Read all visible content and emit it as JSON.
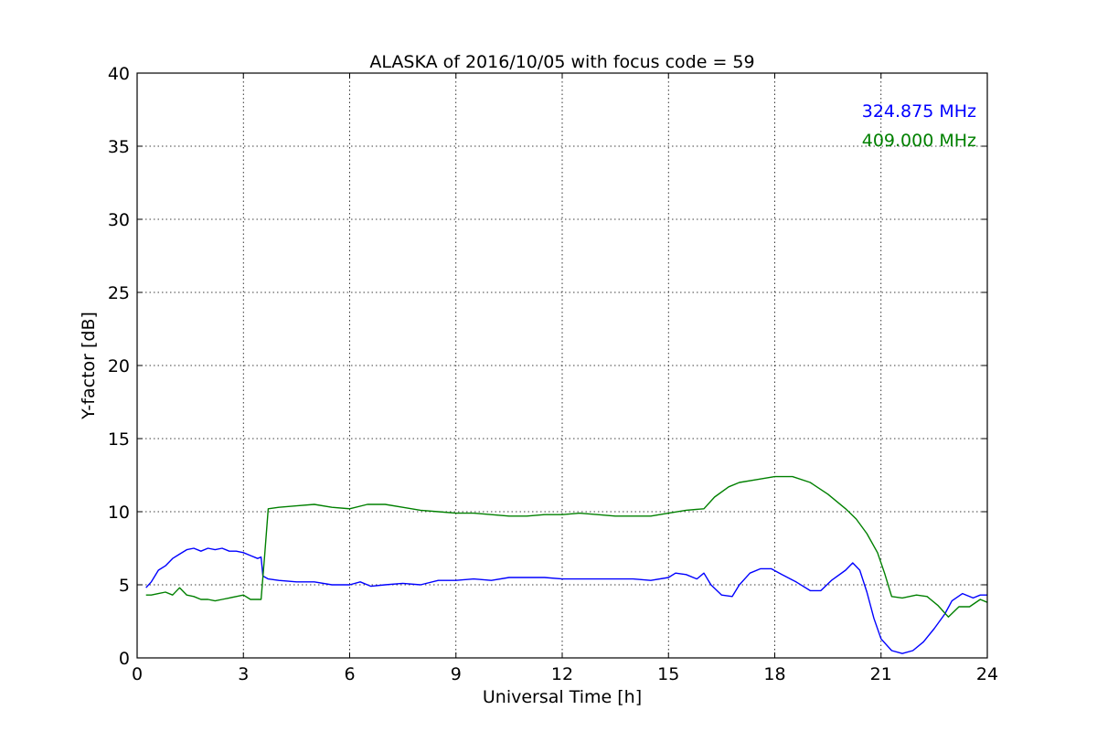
{
  "chart_data": {
    "type": "line",
    "title": "ALASKA of 2016/10/05 with focus code = 59",
    "xlabel": "Universal Time [h]",
    "ylabel": "Y-factor [dB]",
    "xlim": [
      0,
      24
    ],
    "ylim": [
      0,
      40
    ],
    "xticks": [
      0,
      3,
      6,
      9,
      12,
      15,
      18,
      21,
      24
    ],
    "xtick_labels": [
      "0",
      "3",
      "6",
      "9",
      "12",
      "15",
      "18",
      "21",
      "24"
    ],
    "yticks": [
      0,
      5,
      10,
      15,
      20,
      25,
      30,
      35,
      40
    ],
    "ytick_labels": [
      "0",
      "5",
      "10",
      "15",
      "20",
      "25",
      "30",
      "35",
      "40"
    ],
    "grid": true,
    "legend_position": "top-right",
    "series": [
      {
        "name": "324.875 MHz",
        "color": "#0000ff",
        "points": [
          [
            0.25,
            4.8
          ],
          [
            0.4,
            5.2
          ],
          [
            0.6,
            6.0
          ],
          [
            0.8,
            6.3
          ],
          [
            1.0,
            6.8
          ],
          [
            1.2,
            7.1
          ],
          [
            1.4,
            7.4
          ],
          [
            1.6,
            7.5
          ],
          [
            1.8,
            7.3
          ],
          [
            2.0,
            7.5
          ],
          [
            2.2,
            7.4
          ],
          [
            2.4,
            7.5
          ],
          [
            2.6,
            7.3
          ],
          [
            2.8,
            7.3
          ],
          [
            3.0,
            7.2
          ],
          [
            3.2,
            7.0
          ],
          [
            3.4,
            6.8
          ],
          [
            3.5,
            6.9
          ],
          [
            3.55,
            5.6
          ],
          [
            3.7,
            5.4
          ],
          [
            4.0,
            5.3
          ],
          [
            4.5,
            5.2
          ],
          [
            5.0,
            5.2
          ],
          [
            5.5,
            5.0
          ],
          [
            6.0,
            5.0
          ],
          [
            6.3,
            5.2
          ],
          [
            6.6,
            4.9
          ],
          [
            7.0,
            5.0
          ],
          [
            7.5,
            5.1
          ],
          [
            8.0,
            5.0
          ],
          [
            8.5,
            5.3
          ],
          [
            9.0,
            5.3
          ],
          [
            9.5,
            5.4
          ],
          [
            10.0,
            5.3
          ],
          [
            10.5,
            5.5
          ],
          [
            11.0,
            5.5
          ],
          [
            11.4,
            5.5
          ],
          [
            11.5,
            5.5
          ],
          [
            12.0,
            5.4
          ],
          [
            12.5,
            5.4
          ],
          [
            13.0,
            5.4
          ],
          [
            13.5,
            5.4
          ],
          [
            14.0,
            5.4
          ],
          [
            14.5,
            5.3
          ],
          [
            15.0,
            5.5
          ],
          [
            15.2,
            5.8
          ],
          [
            15.5,
            5.7
          ],
          [
            15.8,
            5.4
          ],
          [
            16.0,
            5.8
          ],
          [
            16.2,
            5.0
          ],
          [
            16.5,
            4.3
          ],
          [
            16.8,
            4.2
          ],
          [
            17.0,
            5.0
          ],
          [
            17.3,
            5.8
          ],
          [
            17.6,
            6.1
          ],
          [
            17.9,
            6.1
          ],
          [
            18.2,
            5.7
          ],
          [
            18.6,
            5.2
          ],
          [
            19.0,
            4.6
          ],
          [
            19.3,
            4.6
          ],
          [
            19.6,
            5.3
          ],
          [
            20.0,
            6.0
          ],
          [
            20.2,
            6.5
          ],
          [
            20.4,
            6.0
          ],
          [
            20.6,
            4.5
          ],
          [
            20.8,
            2.7
          ],
          [
            21.0,
            1.3
          ],
          [
            21.3,
            0.5
          ],
          [
            21.6,
            0.3
          ],
          [
            21.9,
            0.5
          ],
          [
            22.2,
            1.1
          ],
          [
            22.5,
            2.0
          ],
          [
            22.8,
            3.0
          ],
          [
            23.0,
            3.9
          ],
          [
            23.3,
            4.4
          ],
          [
            23.6,
            4.1
          ],
          [
            23.8,
            4.3
          ],
          [
            24.0,
            4.3
          ]
        ]
      },
      {
        "name": "409.000 MHz",
        "color": "#008000",
        "points": [
          [
            0.25,
            4.3
          ],
          [
            0.4,
            4.3
          ],
          [
            0.6,
            4.4
          ],
          [
            0.8,
            4.5
          ],
          [
            1.0,
            4.3
          ],
          [
            1.2,
            4.8
          ],
          [
            1.4,
            4.3
          ],
          [
            1.6,
            4.2
          ],
          [
            1.8,
            4.0
          ],
          [
            2.0,
            4.0
          ],
          [
            2.2,
            3.9
          ],
          [
            2.4,
            4.0
          ],
          [
            2.6,
            4.1
          ],
          [
            2.8,
            4.2
          ],
          [
            3.0,
            4.3
          ],
          [
            3.2,
            4.0
          ],
          [
            3.4,
            4.0
          ],
          [
            3.5,
            4.0
          ],
          [
            3.6,
            7.0
          ],
          [
            3.7,
            10.2
          ],
          [
            4.0,
            10.3
          ],
          [
            4.5,
            10.4
          ],
          [
            5.0,
            10.5
          ],
          [
            5.5,
            10.3
          ],
          [
            6.0,
            10.2
          ],
          [
            6.5,
            10.5
          ],
          [
            7.0,
            10.5
          ],
          [
            7.5,
            10.3
          ],
          [
            8.0,
            10.1
          ],
          [
            8.5,
            10.0
          ],
          [
            9.0,
            9.9
          ],
          [
            9.5,
            9.9
          ],
          [
            10.0,
            9.8
          ],
          [
            10.5,
            9.7
          ],
          [
            11.0,
            9.7
          ],
          [
            11.5,
            9.8
          ],
          [
            12.0,
            9.8
          ],
          [
            12.5,
            9.9
          ],
          [
            13.0,
            9.8
          ],
          [
            13.5,
            9.7
          ],
          [
            14.0,
            9.7
          ],
          [
            14.5,
            9.7
          ],
          [
            15.0,
            9.9
          ],
          [
            15.5,
            10.1
          ],
          [
            16.0,
            10.2
          ],
          [
            16.3,
            11.0
          ],
          [
            16.7,
            11.7
          ],
          [
            17.0,
            12.0
          ],
          [
            17.5,
            12.2
          ],
          [
            18.0,
            12.4
          ],
          [
            18.5,
            12.4
          ],
          [
            19.0,
            12.0
          ],
          [
            19.5,
            11.2
          ],
          [
            20.0,
            10.2
          ],
          [
            20.3,
            9.5
          ],
          [
            20.6,
            8.5
          ],
          [
            20.9,
            7.2
          ],
          [
            21.1,
            5.8
          ],
          [
            21.3,
            4.2
          ],
          [
            21.6,
            4.1
          ],
          [
            22.0,
            4.3
          ],
          [
            22.3,
            4.2
          ],
          [
            22.6,
            3.6
          ],
          [
            22.9,
            2.8
          ],
          [
            23.2,
            3.5
          ],
          [
            23.5,
            3.5
          ],
          [
            23.8,
            4.0
          ],
          [
            24.0,
            3.8
          ]
        ]
      }
    ]
  }
}
